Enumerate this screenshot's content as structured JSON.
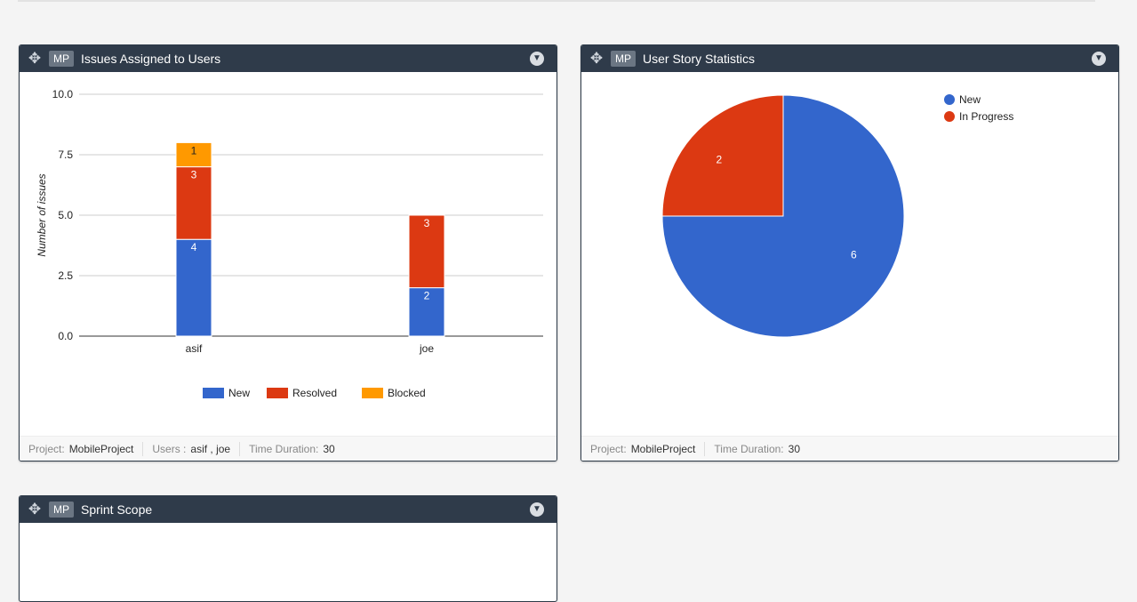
{
  "panels": [
    {
      "badge": "MP",
      "title": "Issues Assigned to Users",
      "footer": {
        "project_label": "Project:",
        "project": "MobileProject",
        "users_label": "Users :",
        "users": "asif , joe",
        "duration_label": "Time Duration:",
        "duration": "30"
      }
    },
    {
      "badge": "MP",
      "title": "User Story Statistics",
      "footer": {
        "project_label": "Project:",
        "project": "MobileProject",
        "duration_label": "Time Duration:",
        "duration": "30"
      }
    },
    {
      "badge": "MP",
      "title": "Sprint Scope"
    }
  ],
  "chart_data": [
    {
      "type": "bar",
      "stacked": true,
      "title": "Issues Assigned to Users",
      "ylabel": "Number of issues",
      "xlabel": "",
      "ylim": [
        0,
        10
      ],
      "yticks": [
        "0.0",
        "2.5",
        "5.0",
        "7.5",
        "10.0"
      ],
      "categories": [
        "asif",
        "joe"
      ],
      "series": [
        {
          "name": "New",
          "color": "#3366cc",
          "values": [
            4,
            2
          ]
        },
        {
          "name": "Resolved",
          "color": "#dc3912",
          "values": [
            3,
            3
          ]
        },
        {
          "name": "Blocked",
          "color": "#ff9900",
          "values": [
            1,
            0
          ]
        }
      ],
      "legend": "bottom"
    },
    {
      "type": "pie",
      "title": "User Story Statistics",
      "slices": [
        {
          "label": "New",
          "value": 6,
          "color": "#3366cc"
        },
        {
          "label": "In Progress",
          "value": 2,
          "color": "#dc3912"
        }
      ],
      "legend": "top-right"
    }
  ]
}
